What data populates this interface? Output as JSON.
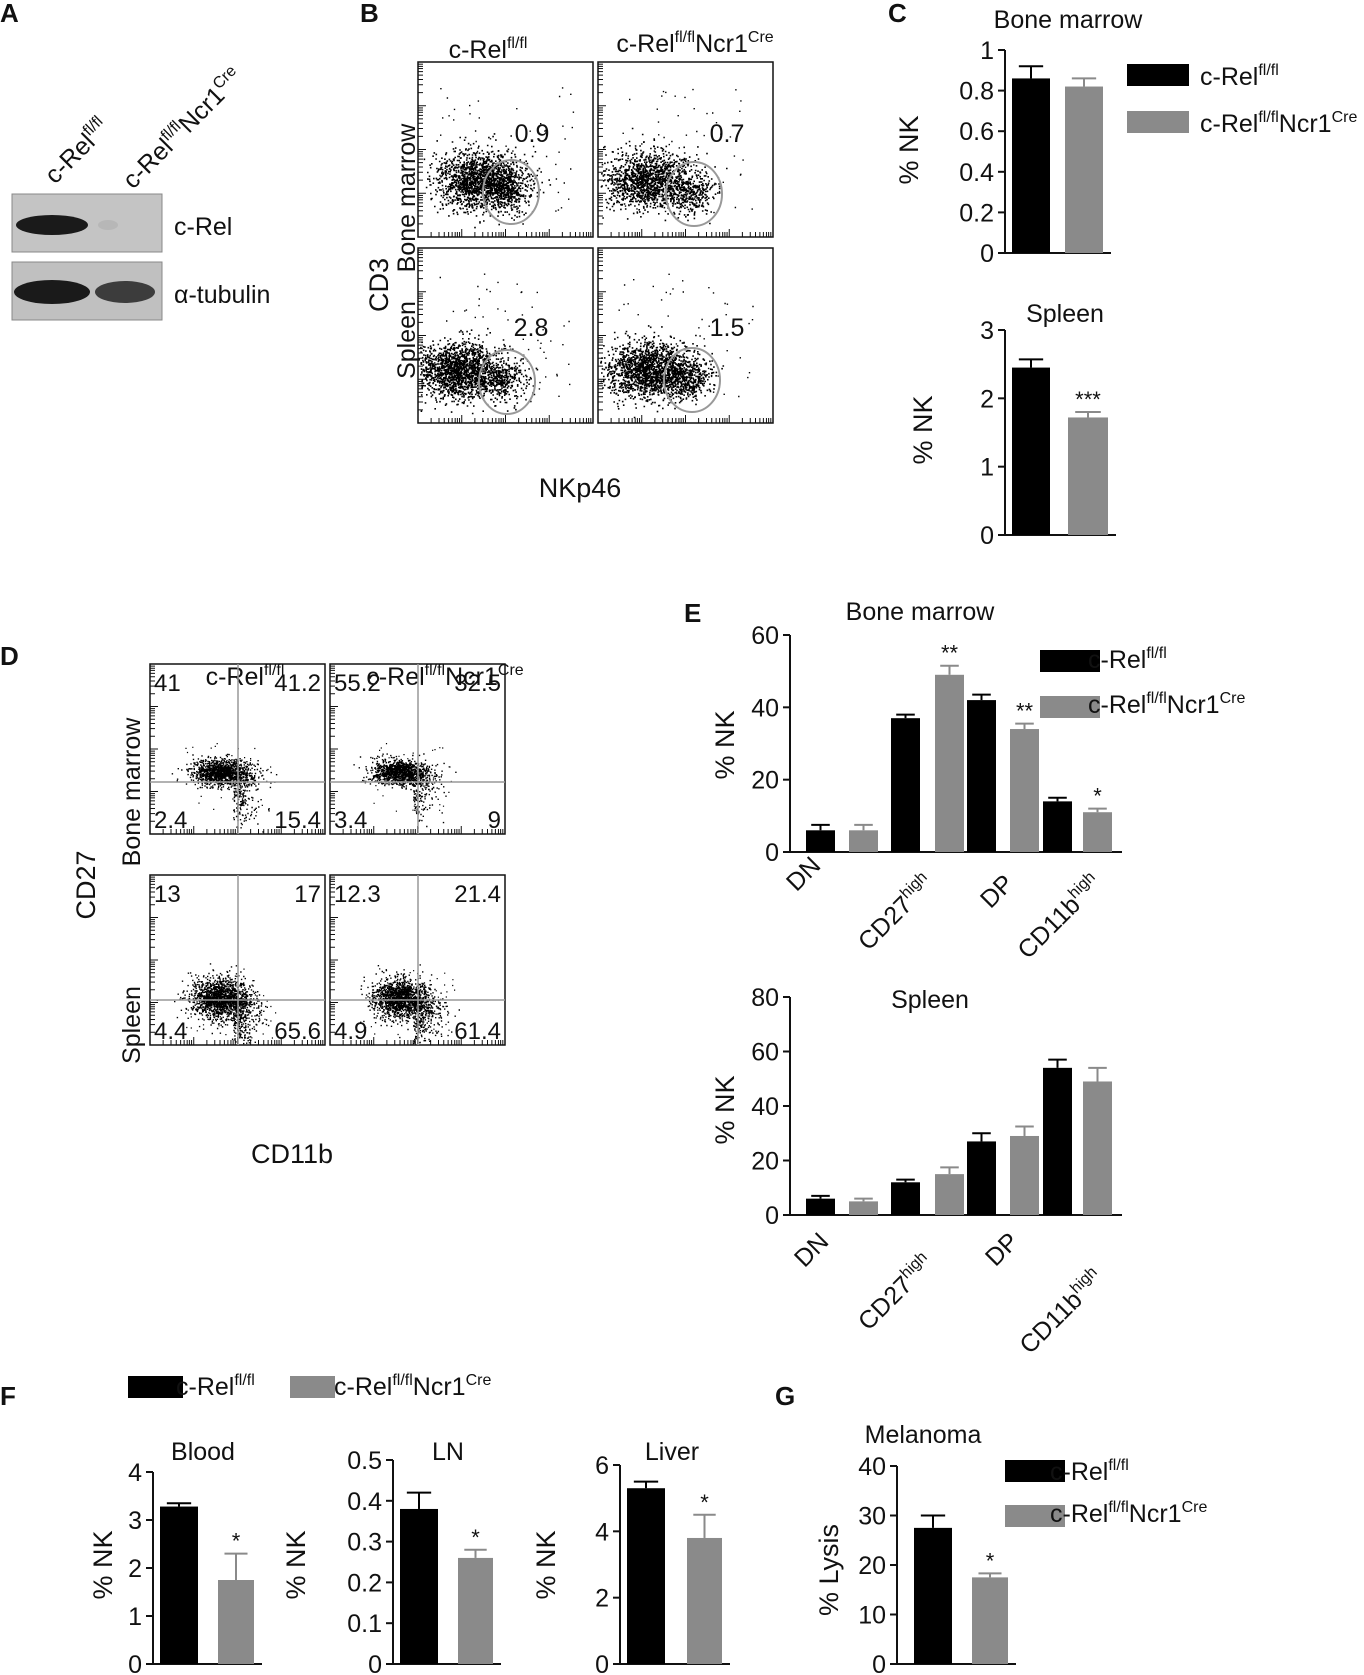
{
  "panels": {
    "A": "A",
    "B": "B",
    "C": "C",
    "D": "D",
    "E": "E",
    "F": "F",
    "G": "G"
  },
  "legend": {
    "wt_base": "c-Rel",
    "wt_sup": "fl/fl",
    "ko_base": "c-Rel",
    "ko_sup": "fl/fl",
    "ko_mid": "Ncr1",
    "ko_sup2": "Cre"
  },
  "colors": {
    "wt": "#000000",
    "ko": "#8a8a8a",
    "gate": "#999999"
  },
  "western": {
    "lane1_base": "c-Rel",
    "lane1_sup": "fl/fl",
    "lane2_base": "c-Rel",
    "lane2_sup": "fl/fl",
    "lane2_mid": "Ncr1",
    "lane2_sup2": "Cre",
    "band1": "c-Rel",
    "band2": "α-tubulin",
    "band_intensity": {
      "c_rel": [
        1.0,
        0.08
      ],
      "tubulin": [
        1.0,
        0.85
      ]
    }
  },
  "flow_b": {
    "ylabel": "CD3",
    "xlabel": "NKp46",
    "rows": [
      "Bone marrow",
      "Spleen"
    ],
    "values": [
      [
        "0.9",
        "0.7"
      ],
      [
        "2.8",
        "1.5"
      ]
    ]
  },
  "flow_d": {
    "ylabel": "CD27",
    "xlabel": "CD11b",
    "rows": [
      "Bone marrow",
      "Spleen"
    ],
    "quadrants": [
      [
        [
          "41",
          "41.2",
          "2.4",
          "15.4"
        ],
        [
          "55.2",
          "32.5",
          "3.4",
          "9"
        ]
      ],
      [
        [
          "13",
          "17",
          "4.4",
          "65.6"
        ],
        [
          "12.3",
          "21.4",
          "4.9",
          "61.4"
        ]
      ]
    ]
  },
  "chart_data": [
    {
      "id": "C-bm",
      "type": "bar",
      "title": "Bone marrow",
      "ylabel": "% NK",
      "ylim": [
        0,
        1
      ],
      "yticks": [
        "0",
        "0.2",
        "0.4",
        "0.6",
        "0.8",
        "1"
      ],
      "series": [
        {
          "name": "c-Relfl/fl",
          "values": [
            0.86
          ],
          "errors": [
            0.06
          ]
        },
        {
          "name": "c-Relfl/flNcr1Cre",
          "values": [
            0.82
          ],
          "errors": [
            0.04
          ]
        }
      ]
    },
    {
      "id": "C-sp",
      "type": "bar",
      "title": "Spleen",
      "ylabel": "% NK",
      "ylim": [
        0,
        3
      ],
      "yticks": [
        "0",
        "1",
        "2",
        "3"
      ],
      "series": [
        {
          "name": "c-Relfl/fl",
          "values": [
            2.45
          ],
          "errors": [
            0.12
          ]
        },
        {
          "name": "c-Relfl/flNcr1Cre",
          "values": [
            1.72
          ],
          "errors": [
            0.08
          ]
        }
      ],
      "annotations": [
        {
          "series": 1,
          "text": "***"
        }
      ]
    },
    {
      "id": "E-bm",
      "type": "bar",
      "title": "Bone marrow",
      "ylabel": "% NK",
      "ylim": [
        0,
        60
      ],
      "yticks": [
        "0",
        "20",
        "40",
        "60"
      ],
      "categories": [
        "DN",
        "CD27high",
        "DP",
        "CD11bhigh"
      ],
      "category_labels": [
        [
          "DN",
          ""
        ],
        [
          "CD27",
          "high"
        ],
        [
          "DP",
          ""
        ],
        [
          "CD11b",
          "high"
        ]
      ],
      "series": [
        {
          "name": "c-Relfl/fl",
          "values": [
            6,
            37,
            42,
            14
          ],
          "errors": [
            1.5,
            1,
            1.5,
            1
          ]
        },
        {
          "name": "c-Relfl/flNcr1Cre",
          "values": [
            6,
            49,
            34,
            11
          ],
          "errors": [
            1.5,
            2.5,
            1.5,
            1
          ]
        }
      ],
      "annotations": [
        {
          "series": 1,
          "index": 1,
          "text": "**"
        },
        {
          "series": 1,
          "index": 2,
          "text": "**"
        },
        {
          "series": 1,
          "index": 3,
          "text": "*"
        }
      ]
    },
    {
      "id": "E-sp",
      "type": "bar",
      "title": "Spleen",
      "ylabel": "% NK",
      "ylim": [
        0,
        80
      ],
      "yticks": [
        "0",
        "20",
        "40",
        "60",
        "80"
      ],
      "categories": [
        "DN",
        "CD27high",
        "DP",
        "CD11bhigh"
      ],
      "category_labels": [
        [
          "DN",
          ""
        ],
        [
          "CD27",
          "high"
        ],
        [
          "DP",
          ""
        ],
        [
          "CD11b",
          "high"
        ]
      ],
      "series": [
        {
          "name": "c-Relfl/fl",
          "values": [
            6,
            12,
            27,
            54
          ],
          "errors": [
            1,
            1,
            3,
            3
          ]
        },
        {
          "name": "c-Relfl/flNcr1Cre",
          "values": [
            5,
            15,
            29,
            49
          ],
          "errors": [
            1,
            2.5,
            3.5,
            5
          ]
        }
      ]
    },
    {
      "id": "F-blood",
      "type": "bar",
      "title": "Blood",
      "ylabel": "% NK",
      "ylim": [
        0,
        4
      ],
      "yticks": [
        "0",
        "1",
        "2",
        "3",
        "4"
      ],
      "series": [
        {
          "name": "c-Relfl/fl",
          "values": [
            3.28
          ],
          "errors": [
            0.07
          ]
        },
        {
          "name": "c-Relfl/flNcr1Cre",
          "values": [
            1.75
          ],
          "errors": [
            0.55
          ]
        }
      ],
      "annotations": [
        {
          "series": 1,
          "text": "*"
        }
      ]
    },
    {
      "id": "F-ln",
      "type": "bar",
      "title": "LN",
      "ylabel": "% NK",
      "ylim": [
        0,
        0.5
      ],
      "yticks": [
        "0",
        "0.1",
        "0.2",
        "0.3",
        "0.4",
        "0.5"
      ],
      "series": [
        {
          "name": "c-Relfl/fl",
          "values": [
            0.38
          ],
          "errors": [
            0.04
          ]
        },
        {
          "name": "c-Relfl/flNcr1Cre",
          "values": [
            0.26
          ],
          "errors": [
            0.02
          ]
        }
      ],
      "annotations": [
        {
          "series": 1,
          "text": "*"
        }
      ]
    },
    {
      "id": "F-liver",
      "type": "bar",
      "title": "Liver",
      "ylabel": "% NK",
      "ylim": [
        0,
        6
      ],
      "yticks": [
        "0",
        "2",
        "4",
        "6"
      ],
      "series": [
        {
          "name": "c-Relfl/fl",
          "values": [
            5.3
          ],
          "errors": [
            0.2
          ]
        },
        {
          "name": "c-Relfl/flNcr1Cre",
          "values": [
            3.8
          ],
          "errors": [
            0.7
          ]
        }
      ],
      "annotations": [
        {
          "series": 1,
          "text": "*"
        }
      ]
    },
    {
      "id": "G",
      "type": "bar",
      "title": "Melanoma",
      "ylabel": "% Lysis",
      "ylim": [
        0,
        40
      ],
      "yticks": [
        "0",
        "10",
        "20",
        "30",
        "40"
      ],
      "series": [
        {
          "name": "c-Relfl/fl",
          "values": [
            27.5
          ],
          "errors": [
            2.5
          ]
        },
        {
          "name": "c-Relfl/flNcr1Cre",
          "values": [
            17.5
          ],
          "errors": [
            0.8
          ]
        }
      ],
      "annotations": [
        {
          "series": 1,
          "text": "*"
        }
      ]
    }
  ]
}
